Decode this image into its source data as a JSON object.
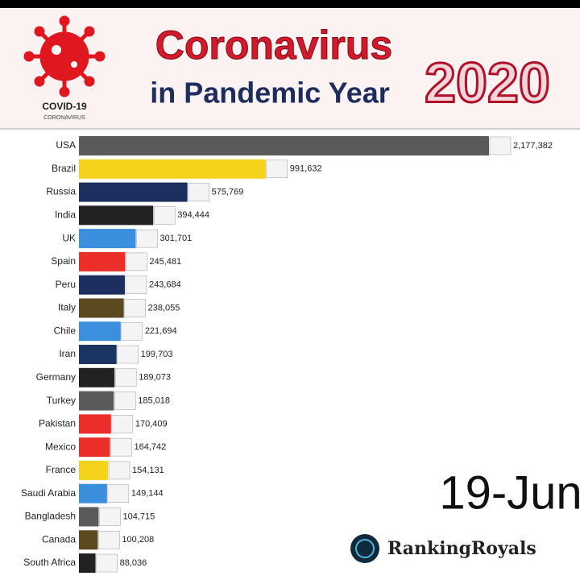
{
  "chart_data": {
    "type": "bar",
    "orientation": "horizontal",
    "title": "Coronavirus",
    "subtitle": "in Pandemic Year",
    "year": "2020",
    "logo_title": "COVID-19",
    "logo_subtitle": "CORONAVIRUS",
    "date": "19-Jun",
    "brand": "RankingRoyals",
    "categories": [
      "USA",
      "Brazil",
      "Russia",
      "India",
      "UK",
      "Spain",
      "Peru",
      "Italy",
      "Chile",
      "Iran",
      "Germany",
      "Turkey",
      "Pakistan",
      "Mexico",
      "France",
      "Saudi Arabia",
      "Bangladesh",
      "Canada",
      "South Africa"
    ],
    "values": [
      2177382,
      991632,
      575769,
      394444,
      301701,
      245481,
      243684,
      238055,
      221694,
      199703,
      189073,
      185018,
      170409,
      164742,
      154131,
      149144,
      104715,
      100208,
      88036
    ],
    "value_labels": [
      "2,177,382",
      "991,632",
      "575,769",
      "394,444",
      "301,701",
      "245,481",
      "243,684",
      "238,055",
      "221,694",
      "199,703",
      "189,073",
      "185,018",
      "170,409",
      "164,742",
      "154,131",
      "149,144",
      "104,715",
      "100,208",
      "88,036"
    ],
    "colors": [
      "#5a5a5a",
      "#f3d31c",
      "#1d2f5f",
      "#222222",
      "#3b8fdc",
      "#ea2f2a",
      "#1b3060",
      "#5b4a1f",
      "#3b8fdc",
      "#1b3563",
      "#222222",
      "#5a5a5a",
      "#ea2f2a",
      "#ea2f2a",
      "#f3d31c",
      "#3b8fdc",
      "#5a5a5a",
      "#5b4a1f",
      "#222222"
    ]
  }
}
